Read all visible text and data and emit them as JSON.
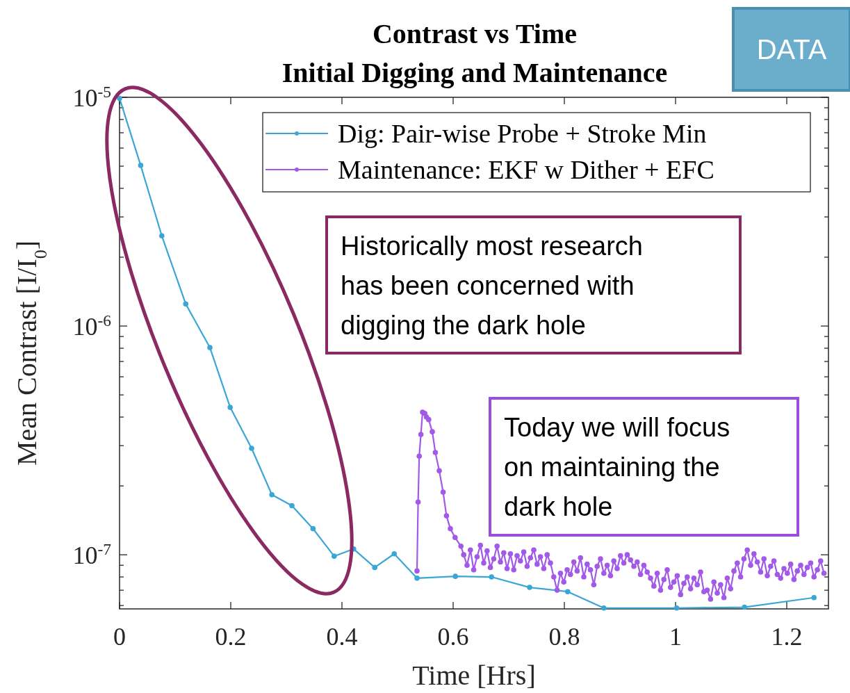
{
  "chart_data": {
    "type": "line",
    "title": "Contrast vs Time",
    "subtitle": "Initial Digging and Maintenance",
    "xlabel": "Time [Hrs]",
    "ylabel": "Mean Contrast [I/I$_{0}$]",
    "log": "y",
    "grid": false,
    "legend": "top right",
    "marker": "circle",
    "line_style": "solid",
    "xlim": [
      0,
      1.275
    ],
    "xticks": [
      0,
      0.2,
      0.4,
      0.6,
      0.8,
      1,
      1.2
    ],
    "ylim": [
      5.8e-08,
      1e-05
    ],
    "yticks": [
      {
        "value": 6e-08,
        "label": null
      },
      {
        "value": 7e-08,
        "label": null
      },
      {
        "value": 8e-08,
        "label": null
      },
      {
        "value": 9e-08,
        "label": null
      },
      {
        "value": 1e-07,
        "label": "10$^{-7}$"
      },
      {
        "value": 2e-07,
        "label": null
      },
      {
        "value": 3e-07,
        "label": null
      },
      {
        "value": 4e-07,
        "label": null
      },
      {
        "value": 5e-07,
        "label": null
      },
      {
        "value": 6e-07,
        "label": null
      },
      {
        "value": 7e-07,
        "label": null
      },
      {
        "value": 8e-07,
        "label": null
      },
      {
        "value": 9e-07,
        "label": null
      },
      {
        "value": 1e-06,
        "label": "10$^{-6}$"
      },
      {
        "value": 2e-06,
        "label": null
      },
      {
        "value": 3e-06,
        "label": null
      },
      {
        "value": 4e-06,
        "label": null
      },
      {
        "value": 5e-06,
        "label": null
      },
      {
        "value": 6e-06,
        "label": null
      },
      {
        "value": 7e-06,
        "label": null
      },
      {
        "value": 8e-06,
        "label": null
      },
      {
        "value": 9e-06,
        "label": null
      },
      {
        "value": 1e-05,
        "label": "10$^{-5}$"
      }
    ],
    "series": [
      {
        "name": "Dig: Pair-wise Probe + Stroke Min",
        "color": "#3aa6d6",
        "x": [
          0,
          0.038,
          0.076,
          0.119,
          0.1625,
          0.199,
          0.2375,
          0.274,
          0.31,
          0.348,
          0.386,
          0.421,
          0.459,
          0.494,
          0.535,
          0.604,
          0.669,
          0.7375,
          0.806,
          0.871,
          1.002,
          1.124,
          1.249
        ],
        "values": [
          9.9e-06,
          5.04e-06,
          2.48e-06,
          1.25e-06,
          8.05e-07,
          4.41e-07,
          2.92e-07,
          1.83e-07,
          1.64e-07,
          1.3e-07,
          9.86e-08,
          1.06e-07,
          8.8e-08,
          1.01e-07,
          7.9e-08,
          8.05e-08,
          8e-08,
          7.2e-08,
          6.9e-08,
          5.85e-08,
          5.85e-08,
          5.9e-08,
          6.5e-08
        ]
      },
      {
        "name": "Maintenance: EKF w Dither + EFC",
        "color": "#a259e8",
        "x": [
          0.535,
          0.537,
          0.539,
          0.542,
          0.545,
          0.549,
          0.552,
          0.556,
          0.5625,
          0.568,
          0.575,
          0.582,
          0.588,
          0.595,
          0.6035,
          0.614,
          0.619,
          0.625,
          0.631,
          0.637,
          0.643,
          0.649,
          0.655,
          0.661,
          0.667,
          0.673,
          0.679,
          0.685,
          0.691,
          0.697,
          0.703,
          0.709,
          0.715,
          0.721,
          0.727,
          0.733,
          0.739,
          0.745,
          0.751,
          0.757,
          0.763,
          0.769,
          0.775,
          0.781,
          0.787,
          0.793,
          0.799,
          0.805,
          0.811,
          0.817,
          0.823,
          0.829,
          0.835,
          0.841,
          0.847,
          0.853,
          0.859,
          0.865,
          0.871,
          0.877,
          0.883,
          0.889,
          0.895,
          0.901,
          0.907,
          0.913,
          0.919,
          0.925,
          0.931,
          0.937,
          0.943,
          0.949,
          0.955,
          0.961,
          0.967,
          0.973,
          0.979,
          0.985,
          0.991,
          0.997,
          1.003,
          1.009,
          1.015,
          1.021,
          1.027,
          1.033,
          1.039,
          1.045,
          1.051,
          1.057,
          1.063,
          1.069,
          1.075,
          1.081,
          1.087,
          1.093,
          1.099,
          1.105,
          1.111,
          1.117,
          1.123,
          1.129,
          1.135,
          1.141,
          1.147,
          1.153,
          1.159,
          1.165,
          1.171,
          1.177,
          1.183,
          1.189,
          1.195,
          1.201,
          1.207,
          1.213,
          1.219,
          1.225,
          1.231,
          1.237,
          1.243,
          1.249,
          1.255,
          1.261,
          1.267
        ],
        "values": [
          8.5e-08,
          1.7e-07,
          2.7e-07,
          3.36e-07,
          4.2e-07,
          4.15e-07,
          4e-07,
          3.9e-07,
          3.45e-07,
          2.8e-07,
          2.33e-07,
          1.88e-07,
          1.48e-07,
          1.3e-07,
          1.19e-07,
          1.09e-07,
          1e-07,
          9e-08,
          1.05e-07,
          8.6e-08,
          9.8e-08,
          1.1e-07,
          9.2e-08,
          1.04e-07,
          8.8e-08,
          9.6e-08,
          1.09e-07,
          9.3e-08,
          1.02e-07,
          8.7e-08,
          1.01e-07,
          8.6e-08,
          9.9e-08,
          9.4e-08,
          1.03e-07,
          8.9e-08,
          9.7e-08,
          1.05e-07,
          9.1e-08,
          9.8e-08,
          8.7e-08,
          1e-07,
          9.2e-08,
          8e-08,
          7e-08,
          8.3e-08,
          7.6e-08,
          8.6e-08,
          8.2e-08,
          9.3e-08,
          8.5e-08,
          9.7e-08,
          8e-08,
          9.1e-08,
          8.6e-08,
          7.4e-08,
          8.9e-08,
          9.6e-08,
          8.3e-08,
          9e-08,
          8.1e-08,
          9.4e-08,
          8.7e-08,
          9.9e-08,
          9.2e-08,
          1e-07,
          9.5e-08,
          8.9e-08,
          9.3e-08,
          8.2e-08,
          9e-08,
          8.4e-08,
          7.9e-08,
          7.3e-08,
          8.3e-08,
          7e-08,
          7.8e-08,
          8.6e-08,
          7.2e-08,
          7.6e-08,
          8.1e-08,
          6.7e-08,
          7.5e-08,
          8e-08,
          7.1e-08,
          7.9e-08,
          7.4e-08,
          8.4e-08,
          6.9e-08,
          7e-08,
          6.4e-08,
          7.6e-08,
          6.8e-08,
          7.4e-08,
          6.5e-08,
          7.9e-08,
          7.1e-08,
          8.5e-08,
          9.2e-08,
          8e-08,
          9.6e-08,
          1.05e-07,
          9e-08,
          1.01e-07,
          9.3e-08,
          8.4e-08,
          9.6e-08,
          8.1e-08,
          8.9e-08,
          9.4e-08,
          8.2e-08,
          7.9e-08,
          8.7e-08,
          8.3e-08,
          9.1e-08,
          7.8e-08,
          8.5e-08,
          9e-08,
          8.2e-08,
          8.8e-08,
          9.2e-08,
          8e-08,
          8.6e-08,
          9.4e-08,
          8.3e-08
        ]
      }
    ],
    "annotations": [
      "Historically most research has been concerned with digging the dark hole",
      "Today we will focus on maintaining the dark hole",
      "DATA"
    ]
  }
}
